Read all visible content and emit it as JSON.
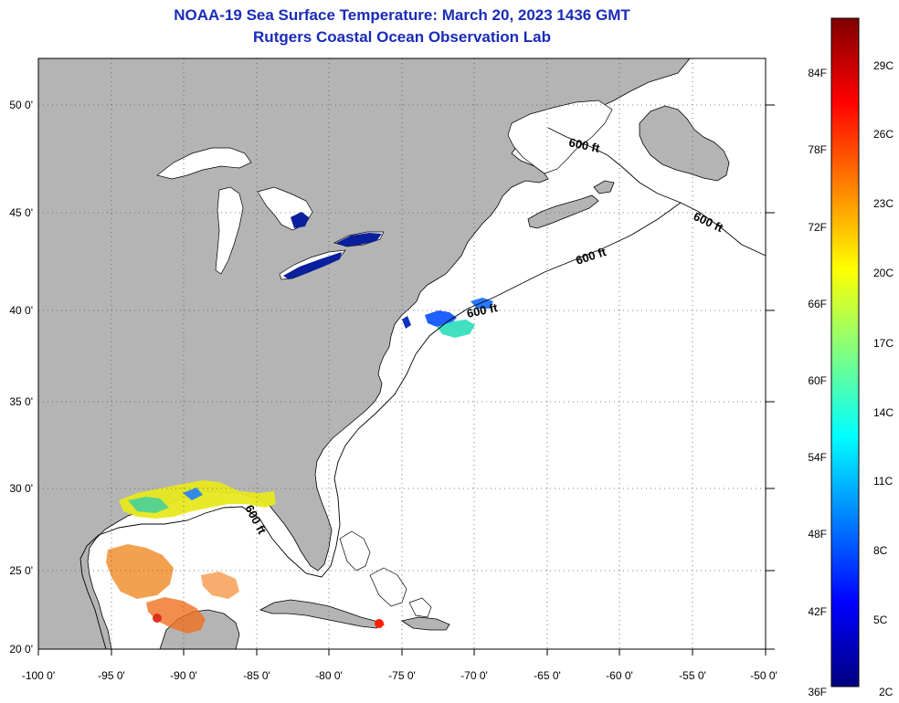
{
  "title": "NOAA-19 Sea Surface Temperature:  March 20, 2023 1436 GMT",
  "subtitle": "Rutgers Coastal Ocean Observation Lab",
  "map": {
    "lon_labels": [
      "-100 0'",
      "-95 0'",
      "-90 0'",
      "-85 0'",
      "-80 0'",
      "-75 0'",
      "-70 0'",
      "-65 0'",
      "-60 0'",
      "-55 0'",
      "-50 0'"
    ],
    "lat_labels": [
      "20 0'",
      "25 0'",
      "30 0'",
      "35 0'",
      "40 0'",
      "45 0'",
      "50 0'"
    ],
    "contour_labels": [
      "600 ft",
      "600 ft",
      "600 ft",
      "600 ft",
      "600 ft"
    ],
    "land_color": "#b4b4b4",
    "water_color": "#ffffff"
  },
  "colorbar": {
    "f_labels": [
      "84F",
      "78F",
      "72F",
      "66F",
      "60F",
      "54F",
      "48F",
      "42F",
      "36F"
    ],
    "c_labels": [
      "29C",
      "26C",
      "23C",
      "20C",
      "17C",
      "14C",
      "11C",
      "8C",
      "5C",
      "2C"
    ],
    "colors": [
      "#000080",
      "#0000ff",
      "#0080ff",
      "#00ffff",
      "#80ff80",
      "#ffff00",
      "#ff8000",
      "#ff0000",
      "#800000"
    ]
  }
}
